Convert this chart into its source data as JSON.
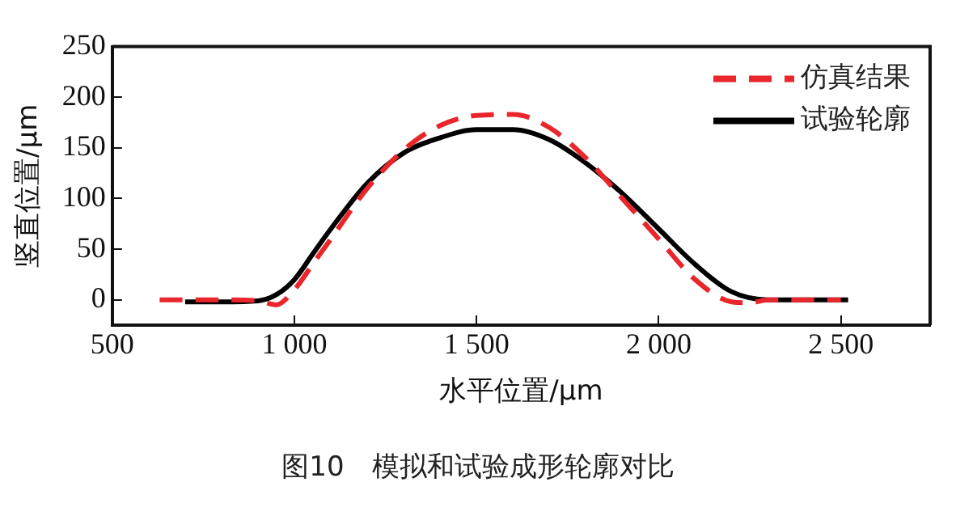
{
  "chart_data": {
    "type": "line",
    "xlabel": "水平位置/μm",
    "ylabel": "竖直位置/μm",
    "xlim": [
      500,
      2745
    ],
    "ylim": [
      -25,
      250
    ],
    "xticks": [
      500,
      {
        "value": 1000,
        "label": "1 000"
      },
      {
        "value": 1500,
        "label": "1 500"
      },
      {
        "value": 2000,
        "label": "2 000"
      },
      {
        "value": 2500,
        "label": "2 500"
      }
    ],
    "yticks": [
      0,
      50,
      100,
      150,
      200,
      250
    ],
    "grid": false,
    "legend": "top right",
    "marker": "none",
    "series": [
      {
        "name": "仿真结果",
        "color": "#e8262b",
        "line_style": "dashed",
        "x": [
          630,
          700,
          800,
          900,
          950,
          1000,
          1050,
          1100,
          1200,
          1300,
          1400,
          1500,
          1600,
          1700,
          1800,
          1900,
          2000,
          2100,
          2200,
          2250,
          2300,
          2400,
          2500
        ],
        "values": [
          0,
          0,
          0,
          -1,
          -5,
          10,
          35,
          60,
          110,
          148,
          172,
          182,
          183,
          170,
          140,
          100,
          60,
          20,
          -2,
          -3,
          0,
          0,
          0
        ]
      },
      {
        "name": "试验轮廓",
        "color": "#000000",
        "line_style": "solid",
        "x": [
          700,
          800,
          900,
          950,
          1000,
          1050,
          1100,
          1200,
          1300,
          1400,
          1500,
          1600,
          1700,
          1800,
          1900,
          2000,
          2100,
          2200,
          2300,
          2400,
          2520
        ],
        "values": [
          -2,
          -2,
          -1,
          5,
          20,
          45,
          70,
          115,
          145,
          160,
          168,
          168,
          158,
          135,
          105,
          70,
          35,
          8,
          0,
          0,
          0
        ]
      }
    ],
    "annotations": [
      "图10　模拟和试验成形轮廓对比"
    ]
  }
}
